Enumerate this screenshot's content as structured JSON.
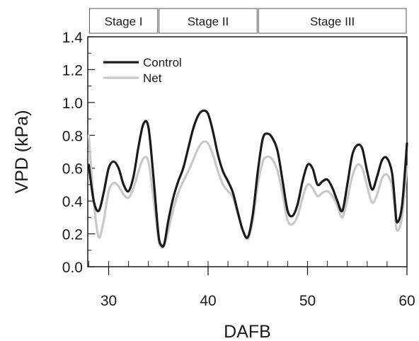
{
  "chart_data": {
    "type": "line",
    "title": "",
    "xlabel": "DAFB",
    "ylabel": "VPD (kPa)",
    "xlim": [
      27.9,
      60
    ],
    "ylim": [
      0,
      1.4
    ],
    "xticks": [
      30,
      40,
      50,
      60
    ],
    "yticks": [
      0.0,
      0.2,
      0.4,
      0.6,
      0.8,
      1.0,
      1.2,
      1.4
    ],
    "ytick_labels": [
      "0.0",
      "0.2",
      "0.4",
      "0.6",
      "0.8",
      "1.0",
      "1.2",
      "1.4"
    ],
    "legend_position": "top-left",
    "grid": false,
    "stages": [
      {
        "label": "Stage I",
        "start": 28,
        "end": 35
      },
      {
        "label": "Stage II",
        "start": 35,
        "end": 45
      },
      {
        "label": "Stage III",
        "start": 45,
        "end": 60
      }
    ],
    "series": [
      {
        "name": "Control",
        "color": "#1a1a1a",
        "x": [
          28.0,
          28.5,
          29.0,
          29.5,
          30.0,
          30.5,
          31.0,
          31.5,
          32.0,
          32.5,
          33.0,
          33.5,
          34.0,
          34.5,
          35.0,
          35.3,
          35.6,
          36.0,
          36.5,
          37.0,
          37.5,
          38.0,
          38.5,
          39.0,
          39.5,
          40.0,
          40.5,
          41.0,
          41.5,
          42.0,
          42.5,
          43.0,
          43.5,
          44.0,
          44.5,
          45.0,
          45.5,
          46.0,
          46.5,
          47.0,
          47.5,
          48.0,
          48.5,
          49.0,
          49.5,
          50.0,
          50.5,
          51.0,
          51.5,
          52.0,
          52.5,
          53.0,
          53.5,
          54.0,
          54.5,
          55.0,
          55.5,
          56.0,
          56.5,
          57.0,
          57.5,
          58.0,
          58.5,
          58.8,
          59.0,
          59.5,
          60.0
        ],
        "y": [
          0.62,
          0.4,
          0.34,
          0.45,
          0.6,
          0.64,
          0.6,
          0.5,
          0.46,
          0.55,
          0.73,
          0.87,
          0.85,
          0.55,
          0.2,
          0.13,
          0.14,
          0.28,
          0.42,
          0.52,
          0.6,
          0.72,
          0.84,
          0.92,
          0.95,
          0.93,
          0.82,
          0.68,
          0.58,
          0.52,
          0.45,
          0.33,
          0.22,
          0.18,
          0.32,
          0.58,
          0.78,
          0.81,
          0.78,
          0.7,
          0.52,
          0.34,
          0.31,
          0.38,
          0.52,
          0.62,
          0.6,
          0.5,
          0.52,
          0.53,
          0.48,
          0.4,
          0.34,
          0.5,
          0.68,
          0.74,
          0.72,
          0.58,
          0.47,
          0.55,
          0.65,
          0.66,
          0.57,
          0.38,
          0.27,
          0.37,
          0.75
        ]
      },
      {
        "name": "Net",
        "color": "#c8c8c8",
        "x": [
          28.0,
          28.5,
          29.0,
          29.5,
          30.0,
          30.5,
          31.0,
          31.5,
          32.0,
          32.5,
          33.0,
          33.5,
          34.0,
          34.5,
          35.0,
          35.3,
          35.6,
          36.0,
          36.5,
          37.0,
          37.5,
          38.0,
          38.5,
          39.0,
          39.5,
          40.0,
          40.5,
          41.0,
          41.5,
          42.0,
          42.5,
          43.0,
          43.5,
          44.0,
          44.5,
          45.0,
          45.5,
          46.0,
          46.5,
          47.0,
          47.5,
          48.0,
          48.5,
          49.0,
          49.5,
          50.0,
          50.5,
          51.0,
          51.5,
          52.0,
          52.5,
          53.0,
          53.5,
          54.0,
          54.5,
          55.0,
          55.5,
          56.0,
          56.5,
          57.0,
          57.5,
          58.0,
          58.5,
          58.8,
          59.0,
          59.5,
          60.0
        ],
        "y": [
          0.8,
          0.4,
          0.18,
          0.28,
          0.46,
          0.51,
          0.49,
          0.44,
          0.42,
          0.48,
          0.58,
          0.66,
          0.64,
          0.42,
          0.17,
          0.12,
          0.13,
          0.22,
          0.35,
          0.45,
          0.52,
          0.58,
          0.65,
          0.72,
          0.76,
          0.75,
          0.68,
          0.58,
          0.5,
          0.46,
          0.42,
          0.32,
          0.22,
          0.17,
          0.28,
          0.5,
          0.64,
          0.67,
          0.65,
          0.58,
          0.44,
          0.28,
          0.26,
          0.31,
          0.42,
          0.5,
          0.48,
          0.43,
          0.45,
          0.46,
          0.43,
          0.37,
          0.3,
          0.41,
          0.55,
          0.62,
          0.6,
          0.49,
          0.39,
          0.44,
          0.54,
          0.56,
          0.49,
          0.33,
          0.22,
          0.3,
          0.61
        ]
      }
    ]
  }
}
